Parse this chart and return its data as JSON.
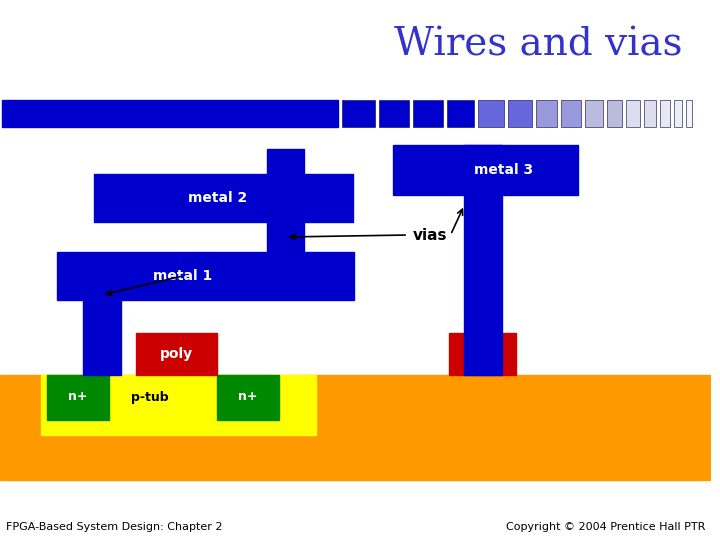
{
  "title": "Wires and vias",
  "title_color": "#3333cc",
  "title_fontsize": 28,
  "bg_color": "#ffffff",
  "footer_left": "FPGA-Based System Design: Chapter 2",
  "footer_right": "Copyright © 2004 Prentice Hall PTR",
  "footer_fontsize": 8,
  "colors": {
    "blue_dark": "#0000cc",
    "blue_light": "#6666dd",
    "blue_lighter": "#9999dd",
    "blue_lightest": "#bbbbdd",
    "blue_faint": "#ddddee",
    "red": "#cc0000",
    "green": "#008800",
    "yellow": "#ffff00",
    "orange": "#ff9900",
    "white": "#ffffff",
    "black": "#000000"
  }
}
